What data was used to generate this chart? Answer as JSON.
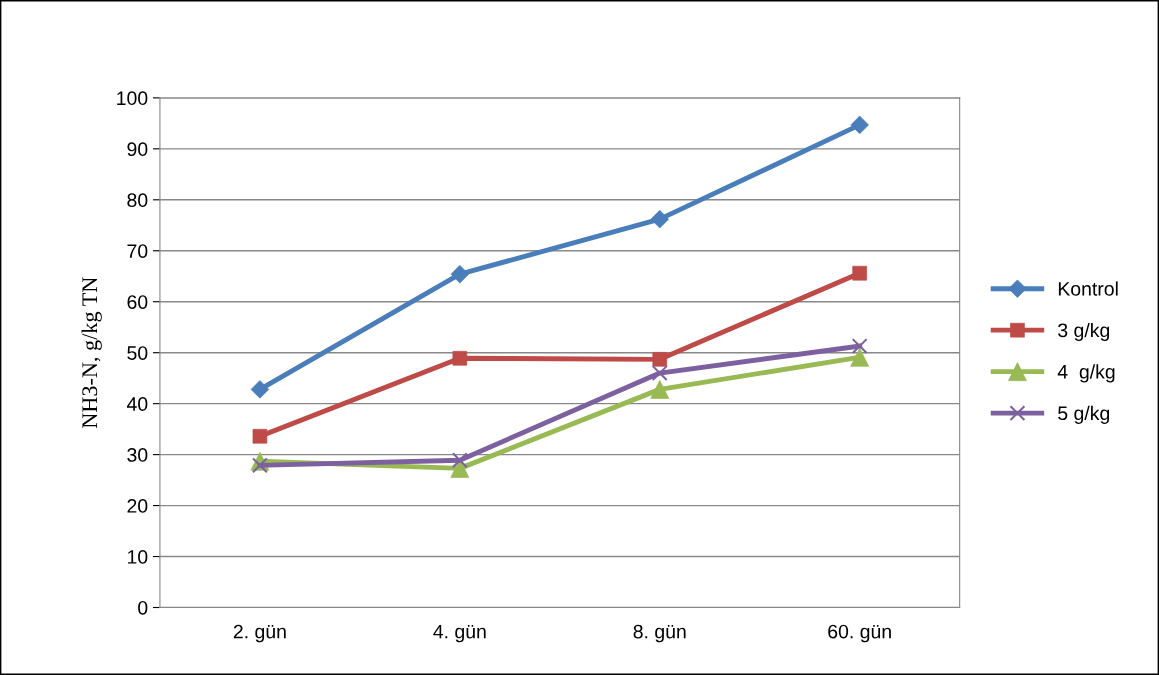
{
  "chart_data": {
    "type": "line",
    "ylabel": "NH3-N, g/kg TN",
    "categories": [
      "2. gün",
      "4. gün",
      "8. gün",
      "60. gün"
    ],
    "series": [
      {
        "name": "Kontrol",
        "color": "#4a7ebb",
        "marker": "diamond",
        "values": [
          42.8,
          65.4,
          76.2,
          94.7
        ]
      },
      {
        "name": "3 g/kg",
        "color": "#be4b48",
        "marker": "square",
        "values": [
          33.6,
          48.9,
          48.7,
          65.6
        ]
      },
      {
        "name": "4  g/kg",
        "color": "#98b954",
        "marker": "triangle",
        "values": [
          28.7,
          27.3,
          42.8,
          49.1
        ]
      },
      {
        "name": "5 g/kg",
        "color": "#7d60a0",
        "marker": "cross",
        "values": [
          27.9,
          28.9,
          46.0,
          51.3
        ]
      }
    ],
    "ylim": [
      0,
      100
    ],
    "yticks": [
      0,
      10,
      20,
      30,
      40,
      50,
      60,
      70,
      80,
      90,
      100
    ],
    "grid": "y",
    "legend": "right",
    "line_style": "solid"
  }
}
